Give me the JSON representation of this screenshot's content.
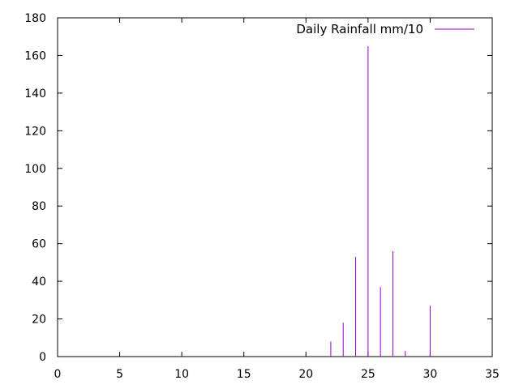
{
  "chart_data": {
    "type": "bar",
    "style": "impulses",
    "series": [
      {
        "name": "Daily Rainfall mm/10",
        "color": "#9400d3",
        "x": [
          22,
          23,
          24,
          25,
          26,
          27,
          28,
          30
        ],
        "values": [
          8,
          18,
          53,
          165,
          37,
          56,
          3,
          27
        ]
      }
    ],
    "xlim": [
      0,
      35
    ],
    "ylim": [
      0,
      180
    ],
    "xticks": [
      0,
      5,
      10,
      15,
      20,
      25,
      30,
      35
    ],
    "yticks": [
      0,
      20,
      40,
      60,
      80,
      100,
      120,
      140,
      160,
      180
    ],
    "xtick_labels": [
      "0",
      "5",
      "10",
      "15",
      "20",
      "25",
      "30",
      "35"
    ],
    "ytick_labels": [
      "0",
      "20",
      "40",
      "60",
      "80",
      "100",
      "120",
      "140",
      "160",
      "180"
    ],
    "grid": false,
    "legend_position": "top-right"
  }
}
